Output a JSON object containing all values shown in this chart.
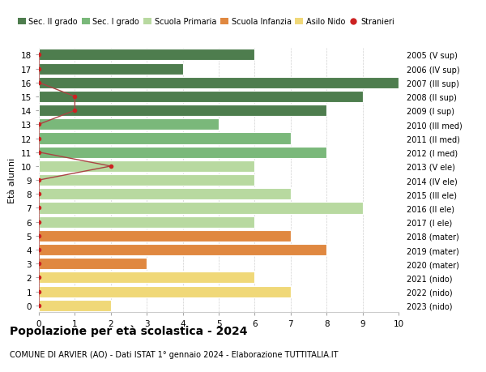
{
  "ages": [
    18,
    17,
    16,
    15,
    14,
    13,
    12,
    11,
    10,
    9,
    8,
    7,
    6,
    5,
    4,
    3,
    2,
    1,
    0
  ],
  "right_labels": [
    "2005 (V sup)",
    "2006 (IV sup)",
    "2007 (III sup)",
    "2008 (II sup)",
    "2009 (I sup)",
    "2010 (III med)",
    "2011 (II med)",
    "2012 (I med)",
    "2013 (V ele)",
    "2014 (IV ele)",
    "2015 (III ele)",
    "2016 (II ele)",
    "2017 (I ele)",
    "2018 (mater)",
    "2019 (mater)",
    "2020 (mater)",
    "2021 (nido)",
    "2022 (nido)",
    "2023 (nido)"
  ],
  "bar_values": [
    6,
    4,
    10,
    9,
    8,
    5,
    7,
    8,
    6,
    6,
    7,
    9,
    6,
    7,
    8,
    3,
    6,
    7,
    2
  ],
  "bar_colors": [
    "#4e7d4e",
    "#4e7d4e",
    "#4e7d4e",
    "#4e7d4e",
    "#4e7d4e",
    "#7ab87a",
    "#7ab87a",
    "#7ab87a",
    "#b8d9a0",
    "#b8d9a0",
    "#b8d9a0",
    "#b8d9a0",
    "#b8d9a0",
    "#e08840",
    "#e08840",
    "#e08840",
    "#f0d878",
    "#f0d878",
    "#f0d878"
  ],
  "stranieri_x": [
    0,
    0,
    0,
    1,
    1,
    0,
    0,
    0,
    2,
    0,
    0,
    0,
    0,
    0,
    0,
    0,
    0,
    0,
    0
  ],
  "stranieri_ages": [
    18,
    17,
    16,
    15,
    14,
    13,
    12,
    11,
    10,
    9,
    8,
    7,
    6,
    5,
    4,
    3,
    2,
    1,
    0
  ],
  "legend_labels": [
    "Sec. II grado",
    "Sec. I grado",
    "Scuola Primaria",
    "Scuola Infanzia",
    "Asilo Nido",
    "Stranieri"
  ],
  "legend_colors": [
    "#4e7d4e",
    "#7ab87a",
    "#b8d9a0",
    "#e08840",
    "#f0d878",
    "#cc2222"
  ],
  "title": "Popolazione per età scolastica - 2024",
  "subtitle": "COMUNE DI ARVIER (AO) - Dati ISTAT 1° gennaio 2024 - Elaborazione TUTTITALIA.IT",
  "ylabel": "Età alunni",
  "xlim": [
    0,
    10
  ],
  "ylim": [
    -0.5,
    18.5
  ],
  "xticks": [
    0,
    1,
    2,
    3,
    4,
    5,
    6,
    7,
    8,
    9,
    10
  ],
  "background_color": "#ffffff",
  "grid_color": "#d0d0d0"
}
